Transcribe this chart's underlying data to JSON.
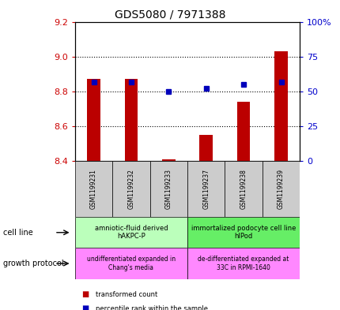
{
  "title": "GDS5080 / 7971388",
  "samples": [
    "GSM1199231",
    "GSM1199232",
    "GSM1199233",
    "GSM1199237",
    "GSM1199238",
    "GSM1199239"
  ],
  "transformed_count": [
    8.87,
    8.87,
    8.41,
    8.55,
    8.74,
    9.03
  ],
  "percentile_rank": [
    57,
    57,
    50,
    52,
    55,
    57
  ],
  "ylim_left": [
    8.4,
    9.2
  ],
  "ylim_right": [
    0,
    100
  ],
  "yticks_left": [
    8.4,
    8.6,
    8.8,
    9.0,
    9.2
  ],
  "yticks_right": [
    0,
    25,
    50,
    75,
    100
  ],
  "cell_line_labels": [
    "amniotic-fluid derived\nhAKPC-P",
    "immortalized podocyte cell line\nhIPod"
  ],
  "cell_line_groups": [
    [
      0,
      1,
      2
    ],
    [
      3,
      4,
      5
    ]
  ],
  "cell_line_colors": [
    "#bbffbb",
    "#66ee66"
  ],
  "growth_protocol_labels": [
    "undifferentiated expanded in\nChang's media",
    "de-differentiated expanded at\n33C in RPMI-1640"
  ],
  "growth_protocol_color": "#ff88ff",
  "bar_color": "#bb0000",
  "dot_color": "#0000bb",
  "label_color_left": "#cc0000",
  "label_color_right": "#0000cc",
  "legend_tc": "transformed count",
  "legend_pr": "percentile rank within the sample",
  "sample_box_color": "#cccccc"
}
